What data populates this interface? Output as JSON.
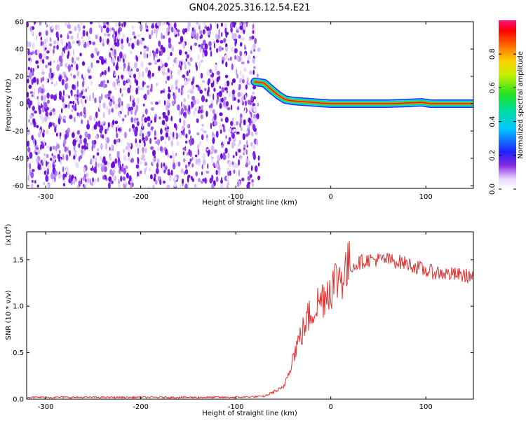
{
  "title": "GN04.2025.316.12.54.E21",
  "colors": {
    "snr_line": "#e03030",
    "noise": "#6a0dd8",
    "frame": "#000000"
  },
  "chart_data": [
    {
      "type": "heatmap",
      "xlabel": "Height of straight line (km)",
      "ylabel": "Frequency (Hz)",
      "xlim": [
        -320,
        150
      ],
      "ylim": [
        -62,
        60
      ],
      "x_ticks": [
        "-300",
        "-200",
        "-100",
        "0",
        "100"
      ],
      "y_ticks": [
        "60",
        "40",
        "20",
        "0",
        "-20",
        "-40",
        "-60"
      ],
      "colorbar": {
        "label": "Normalized spectral amplitude",
        "range": [
          0,
          1
        ],
        "ticks": [
          "0.0",
          "0.2",
          "0.4",
          "0.6",
          "0.8"
        ]
      },
      "trace": {
        "x": [
          -80,
          -70,
          -62,
          -55,
          -48,
          -40,
          -30,
          -20,
          -10,
          0,
          20,
          40,
          60,
          80,
          95,
          105,
          120,
          150
        ],
        "y": [
          16,
          15,
          10,
          6,
          3,
          2,
          1.5,
          1,
          0.5,
          0,
          0,
          0,
          0,
          0.5,
          1,
          0,
          0,
          0
        ]
      }
    },
    {
      "type": "line",
      "xlabel": "Height of straight line (km)",
      "ylabel": "SNR (10 * v/v)",
      "scale_label": "(x10",
      "scale_exp": "4",
      "xlim": [
        -320,
        150
      ],
      "ylim": [
        0,
        1.8
      ],
      "x_ticks": [
        "-300",
        "-200",
        "-100",
        "0",
        "100"
      ],
      "y_ticks": [
        "0.0",
        "0.5",
        "1.0",
        "1.5"
      ],
      "series": [
        {
          "x": [
            -320,
            -100,
            -70,
            -60,
            -50,
            -45,
            -40,
            -35,
            -30,
            -25,
            -20,
            -10,
            0,
            10,
            20,
            30,
            40,
            60,
            80,
            100,
            120,
            150
          ],
          "y": [
            0.02,
            0.02,
            0.03,
            0.08,
            0.12,
            0.28,
            0.45,
            0.6,
            0.72,
            0.85,
            0.95,
            1.08,
            1.22,
            1.33,
            1.42,
            1.47,
            1.5,
            1.5,
            1.46,
            1.38,
            1.35,
            1.32
          ]
        }
      ]
    }
  ]
}
